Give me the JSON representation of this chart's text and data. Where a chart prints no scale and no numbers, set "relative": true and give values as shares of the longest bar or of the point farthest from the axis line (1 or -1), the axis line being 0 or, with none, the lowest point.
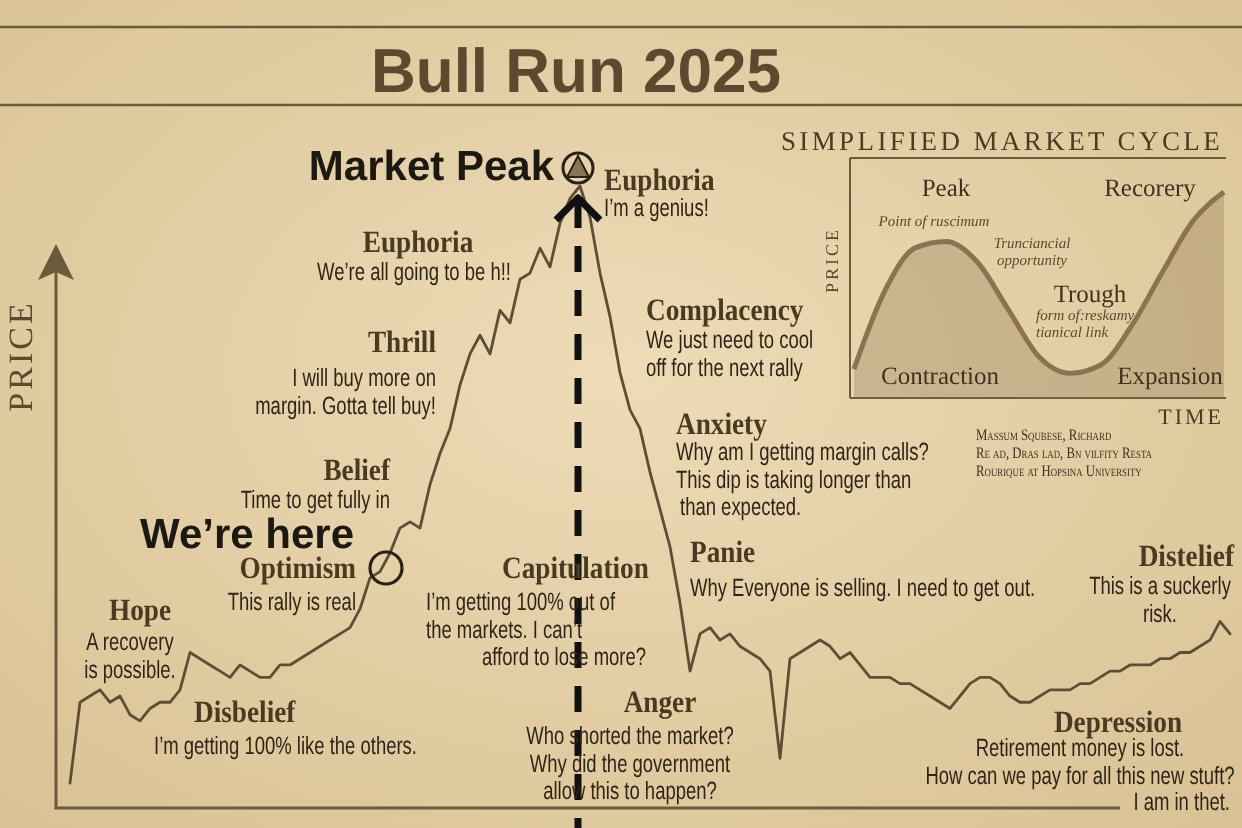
{
  "chart_data": [
    {
      "type": "line",
      "title": "Bull Run 2025",
      "ylabel": "PRICE",
      "relative": true,
      "color": "#5e4e36",
      "categories": [
        null,
        null,
        null,
        null,
        null,
        null,
        null,
        null,
        null,
        null,
        null,
        null,
        null,
        null,
        null,
        null,
        null,
        null,
        null,
        null,
        null,
        null,
        null,
        null,
        null,
        null,
        null,
        null,
        null,
        null,
        null,
        null,
        null,
        null,
        null,
        null,
        null,
        null,
        null,
        null,
        null,
        null,
        null,
        null,
        null,
        null,
        null,
        null,
        null,
        null,
        null,
        null,
        null,
        null,
        null,
        null,
        null,
        null,
        null,
        null,
        null,
        null,
        null,
        null,
        null,
        null,
        null,
        null,
        null,
        null,
        null,
        null,
        null,
        null,
        null,
        null,
        null,
        null,
        null,
        null,
        null,
        null,
        null,
        null,
        null,
        null,
        null,
        null,
        null,
        null,
        null,
        null,
        null,
        null,
        null,
        null,
        null,
        null,
        null,
        null,
        null,
        null,
        null,
        null,
        null,
        null,
        null,
        null,
        null,
        null,
        null,
        null,
        null,
        null,
        null,
        null,
        null
      ],
      "values": [
        0.04,
        0.17,
        0.18,
        0.19,
        0.17,
        0.18,
        0.15,
        0.14,
        0.16,
        0.17,
        0.17,
        0.19,
        0.25,
        0.24,
        0.23,
        0.22,
        0.21,
        0.23,
        0.22,
        0.21,
        0.21,
        0.23,
        0.23,
        0.24,
        0.25,
        0.26,
        0.27,
        0.28,
        0.29,
        0.32,
        0.37,
        0.38,
        0.41,
        0.45,
        0.46,
        0.45,
        0.52,
        0.57,
        0.61,
        0.68,
        0.73,
        0.76,
        0.73,
        0.8,
        0.78,
        0.85,
        0.86,
        0.9,
        0.87,
        0.94,
        0.98,
        1,
        0.95,
        0.86,
        0.79,
        0.7,
        0.64,
        0.61,
        0.54,
        0.48,
        0.42,
        0.33,
        0.22,
        0.28,
        0.29,
        0.27,
        0.28,
        0.26,
        0.25,
        0.24,
        0.22,
        0.08,
        0.24,
        0.25,
        0.26,
        0.27,
        0.26,
        0.24,
        0.25,
        0.23,
        0.21,
        0.21,
        0.21,
        0.2,
        0.2,
        0.19,
        0.18,
        0.17,
        0.16,
        0.18,
        0.2,
        0.21,
        0.21,
        0.2,
        0.18,
        0.17,
        0.17,
        0.18,
        0.19,
        0.19,
        0.19,
        0.2,
        0.2,
        0.21,
        0.22,
        0.22,
        0.23,
        0.23,
        0.23,
        0.24,
        0.24,
        0.25,
        0.25,
        0.26,
        0.27,
        0.3,
        0.28
      ],
      "annotations": [
        "Market Peak",
        "Euphoria",
        "I’m a genius!",
        "Euphoria",
        "We’re all going to be h!!",
        "Thrill",
        "I will buy more on margin. Gotta tell buy!",
        "Belief",
        "Time to get fully in",
        "We’re here",
        "Optimism",
        "This rally is real",
        "Hope",
        "A recovery is possible.",
        "Disbelief",
        "I’m getting 100% like the others.",
        "Capitulation",
        "I’m getting 100% out of the markets. I can’t afford to lose more?",
        "Anger",
        "Who shorted the market? Why did the government allow this to happen?",
        "Complacency",
        "We just need to cool off for the next rally",
        "Anxiety",
        "Why am I getting margin calls? This dip is taking longer than than expected.",
        "Panie",
        "Why Everyone is selling. I need to get out.",
        "Distelief",
        "This is a suckerly risk.",
        "Depression",
        "Retirement money is lost. How can we pay for all this new stuft?",
        "I am in thet."
      ]
    },
    {
      "type": "area",
      "title": "SIMPLIFIED MARKET CYCLE",
      "xlabel": "TIME",
      "ylabel": "PRICE",
      "relative": true,
      "color": "#8b7352",
      "categories": [
        null,
        null,
        null,
        null,
        null,
        null,
        null,
        null,
        null,
        null,
        null,
        null,
        null
      ],
      "values": [
        0.14,
        0.52,
        0.73,
        0.76,
        0.66,
        0.43,
        0.2,
        0.12,
        0.16,
        0.35,
        0.61,
        0.86,
        1
      ],
      "annotations": [
        "Peak",
        "Recorery",
        "Point of ruscimum",
        "Trunciancial opportunity",
        "Trough",
        "form of:reskamy tianical link",
        "Contraction",
        "Expansion",
        "Massum Squbese, Richard Re ad, Dras lad, Bn vilfity Resta Rourique at Hopsina University"
      ]
    }
  ]
}
